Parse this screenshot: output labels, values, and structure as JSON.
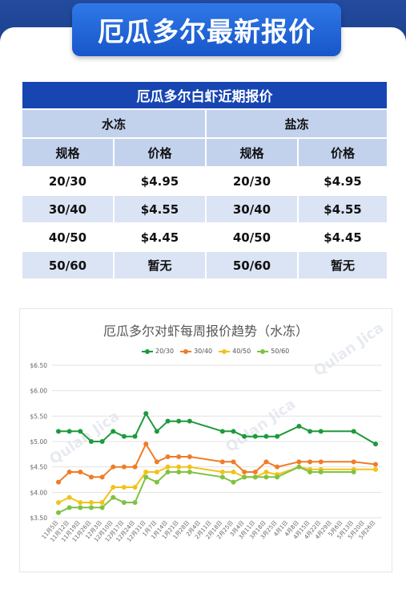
{
  "banner": {
    "title": "厄瓜多尔最新报价"
  },
  "table": {
    "title": "厄瓜多尔白虾近期报价",
    "groups": [
      "水冻",
      "盐冻"
    ],
    "headers": [
      "规格",
      "价格",
      "规格",
      "价格"
    ],
    "rows": [
      [
        "20/30",
        "$4.95",
        "20/30",
        "$4.95"
      ],
      [
        "30/40",
        "$4.55",
        "30/40",
        "$4.55"
      ],
      [
        "40/50",
        "$4.45",
        "40/50",
        "$4.45"
      ],
      [
        "50/60",
        "暂无",
        "50/60",
        "暂无"
      ]
    ]
  },
  "watermark": {
    "text": "Qulan Jica"
  },
  "chart_data": {
    "type": "line",
    "title": "厄瓜多尔对虾每周报价趋势（水冻）",
    "ylim": [
      3.5,
      6.5
    ],
    "y_ticks": [
      "$3.50",
      "$4.00",
      "$4.50",
      "$5.00",
      "$5.50",
      "$6.00",
      "$6.50"
    ],
    "y_tick_values": [
      3.5,
      4.0,
      4.5,
      5.0,
      5.5,
      6.0,
      6.5
    ],
    "x_labels": [
      "11月5日",
      "11月12日",
      "11月19日",
      "11月26日",
      "12月3日",
      "12月10日",
      "12月17日",
      "12月24日",
      "12月31日",
      "1月7日",
      "1月14日",
      "1月21日",
      "1月28日",
      "2月4日",
      "2月11日",
      "2月18日",
      "2月25日",
      "3月4日",
      "3月11日",
      "3月18日",
      "3月25日",
      "4月1日",
      "4月8日",
      "4月15日",
      "4月22日",
      "4月29日",
      "5月6日",
      "5月13日",
      "5月20日",
      "5月26日"
    ],
    "legend_position": "top",
    "grid": true,
    "series": [
      {
        "name": "20/30",
        "color": "#1e9a3c",
        "values": [
          5.2,
          5.2,
          5.2,
          5.0,
          5.0,
          5.2,
          5.1,
          5.1,
          5.55,
          5.2,
          5.4,
          5.4,
          5.4,
          null,
          null,
          5.2,
          5.2,
          5.1,
          5.1,
          5.1,
          5.1,
          null,
          5.3,
          5.2,
          5.2,
          null,
          null,
          5.2,
          null,
          4.95
        ]
      },
      {
        "name": "30/40",
        "color": "#f07c27",
        "values": [
          4.2,
          4.4,
          4.4,
          4.3,
          4.3,
          4.5,
          4.5,
          4.5,
          4.95,
          4.6,
          4.7,
          4.7,
          4.7,
          null,
          null,
          4.6,
          4.6,
          4.4,
          4.4,
          4.6,
          4.5,
          null,
          4.6,
          4.6,
          4.6,
          null,
          null,
          4.6,
          null,
          4.55
        ]
      },
      {
        "name": "40/50",
        "color": "#f3c21b",
        "values": [
          3.8,
          3.9,
          3.8,
          3.8,
          3.8,
          4.1,
          4.1,
          4.1,
          4.4,
          4.4,
          4.5,
          4.5,
          4.5,
          null,
          null,
          4.4,
          4.4,
          4.3,
          4.3,
          4.4,
          4.35,
          null,
          4.5,
          4.45,
          4.45,
          null,
          null,
          4.45,
          null,
          4.45
        ]
      },
      {
        "name": "50/60",
        "color": "#7fc342",
        "values": [
          3.6,
          3.7,
          3.7,
          3.7,
          3.7,
          3.9,
          3.8,
          3.8,
          4.3,
          4.2,
          4.4,
          4.4,
          4.4,
          null,
          null,
          4.3,
          4.2,
          4.3,
          4.3,
          4.3,
          4.3,
          null,
          4.5,
          4.4,
          4.4,
          null,
          null,
          4.4,
          null,
          null
        ]
      }
    ]
  }
}
